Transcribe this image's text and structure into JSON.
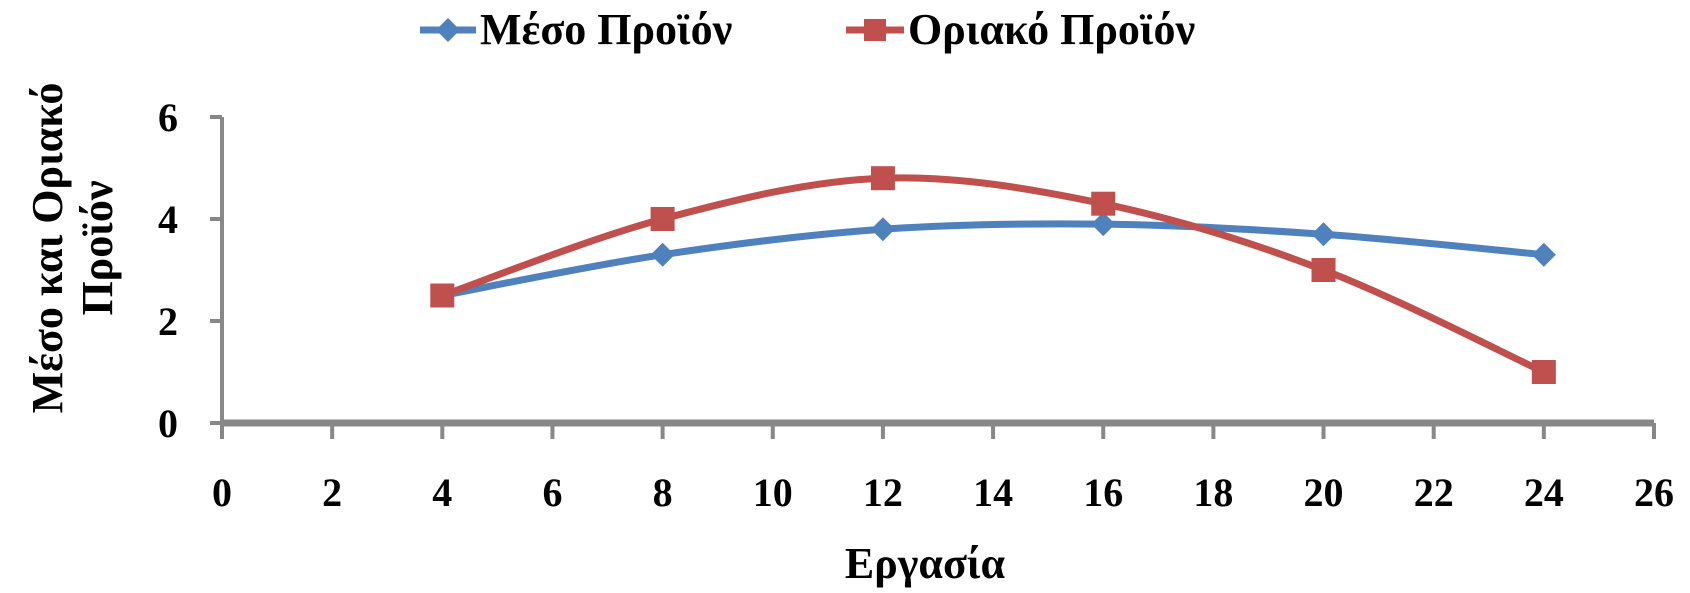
{
  "chart_data": {
    "type": "line",
    "title": "",
    "xlabel": "Εργασία",
    "ylabel_lines": [
      "Μέσο και Οριακό",
      "Προϊόν"
    ],
    "xlim": [
      0,
      26
    ],
    "ylim": [
      0,
      6
    ],
    "xticks": [
      0,
      2,
      4,
      6,
      8,
      10,
      12,
      14,
      16,
      18,
      20,
      22,
      24,
      26
    ],
    "yticks": [
      0,
      2,
      4,
      6
    ],
    "grid": false,
    "legend_position": "top",
    "smooth": true,
    "series": [
      {
        "name": "Μέσο Προϊόν",
        "color": "#4F81BD",
        "marker": "diamond",
        "x": [
          4,
          8,
          12,
          16,
          20,
          24
        ],
        "y": [
          2.5,
          3.3,
          3.8,
          3.9,
          3.7,
          3.3
        ]
      },
      {
        "name": "Οριακό Προϊόν",
        "color": "#C0504D",
        "marker": "square",
        "x": [
          4,
          8,
          12,
          16,
          20,
          24
        ],
        "y": [
          2.5,
          4.0,
          4.8,
          4.3,
          3.0,
          1.0
        ]
      }
    ]
  }
}
